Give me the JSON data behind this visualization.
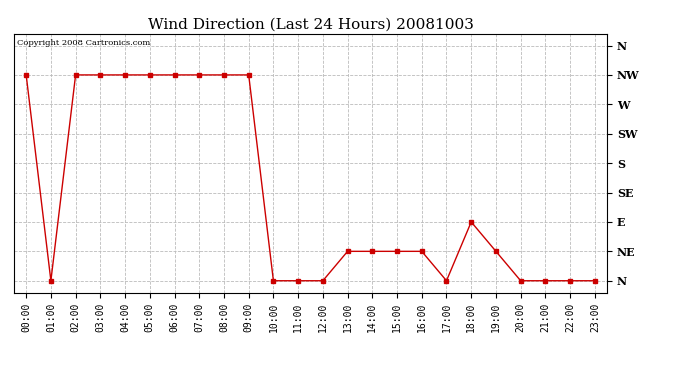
{
  "title": "Wind Direction (Last 24 Hours) 20081003",
  "copyright_text": "Copyright 2008 Cartronics.com",
  "x_labels": [
    "00:00",
    "01:00",
    "02:00",
    "03:00",
    "04:00",
    "05:00",
    "06:00",
    "07:00",
    "08:00",
    "09:00",
    "10:00",
    "11:00",
    "12:00",
    "13:00",
    "14:00",
    "15:00",
    "16:00",
    "17:00",
    "18:00",
    "19:00",
    "20:00",
    "21:00",
    "22:00",
    "23:00"
  ],
  "y_labels": [
    "N",
    "NE",
    "E",
    "SE",
    "S",
    "SW",
    "W",
    "NW",
    "N"
  ],
  "y_values": [
    0,
    1,
    2,
    3,
    4,
    5,
    6,
    7,
    8
  ],
  "wind_data": [
    7,
    0,
    7,
    7,
    7,
    7,
    7,
    7,
    7,
    7,
    0,
    0,
    0,
    1,
    1,
    1,
    1,
    0,
    2,
    1,
    0,
    0,
    0,
    0
  ],
  "line_color": "#cc0000",
  "marker": "s",
  "marker_size": 2.5,
  "bg_color": "#ffffff",
  "grid_color": "#bbbbbb",
  "title_fontsize": 11,
  "tick_fontsize": 7,
  "label_fontsize": 8,
  "copyright_fontsize": 6,
  "fig_width": 6.9,
  "fig_height": 3.75,
  "dpi": 100
}
